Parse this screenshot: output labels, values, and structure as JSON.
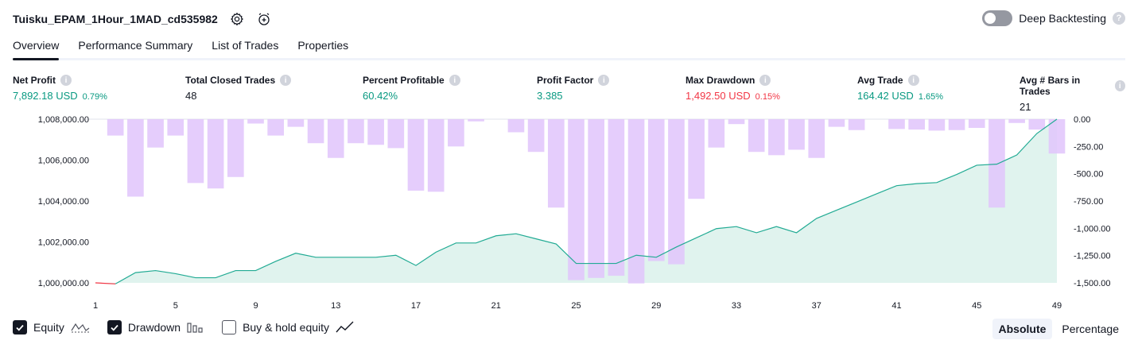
{
  "header": {
    "strategy_name": "Tuisku_EPAM_1Hour_1MAD_cd535982",
    "deep_backtesting_label": "Deep Backtesting"
  },
  "tabs": [
    {
      "label": "Overview",
      "active": true
    },
    {
      "label": "Performance Summary",
      "active": false
    },
    {
      "label": "List of Trades",
      "active": false
    },
    {
      "label": "Properties",
      "active": false
    }
  ],
  "stats": [
    {
      "label": "Net Profit",
      "value": "7,892.18 USD",
      "pct": "0.79%",
      "tone": "pos"
    },
    {
      "label": "Total Closed Trades",
      "value": "48",
      "pct": "",
      "tone": "neu"
    },
    {
      "label": "Percent Profitable",
      "value": "60.42%",
      "pct": "",
      "tone": "pos"
    },
    {
      "label": "Profit Factor",
      "value": "3.385",
      "pct": "",
      "tone": "pos"
    },
    {
      "label": "Max Drawdown",
      "value": "1,492.50 USD",
      "pct": "0.15%",
      "tone": "neg"
    },
    {
      "label": "Avg Trade",
      "value": "164.42 USD",
      "pct": "1.65%",
      "tone": "pos"
    },
    {
      "label": "Avg # Bars in Trades",
      "value": "21",
      "pct": "",
      "tone": "neu"
    }
  ],
  "colors": {
    "equity_line": "#22ab94",
    "equity_fill": "#e0f3ee",
    "equity_negative": "#f23645",
    "drawdown_bar": "#e0c4fb",
    "positive": "#089981",
    "negative": "#f23645"
  },
  "chart_data": {
    "type": "line",
    "x_ticks": [
      1,
      5,
      9,
      13,
      17,
      21,
      25,
      29,
      33,
      37,
      41,
      45,
      49
    ],
    "xlim": [
      1,
      49
    ],
    "left_axis": {
      "ticks": [
        "1,008,000.00",
        "1,006,000.00",
        "1,004,000.00",
        "1,002,000.00",
        "1,000,000.00"
      ],
      "tick_values": [
        1008000,
        1006000,
        1004000,
        1002000,
        1000000
      ],
      "ylim": [
        1000000,
        1008000
      ]
    },
    "right_axis": {
      "ticks": [
        "0.00",
        "-250.00",
        "-500.00",
        "-750.00",
        "-1,000.00",
        "-1,250.00",
        "-1,500.00"
      ],
      "tick_values": [
        0,
        -250,
        -500,
        -750,
        -1000,
        -1250,
        -1500
      ],
      "ylim": [
        -1500,
        0
      ]
    },
    "series": [
      {
        "name": "Equity",
        "axis": "left",
        "x": [
          1,
          2,
          3,
          4,
          5,
          6,
          7,
          8,
          9,
          10,
          11,
          12,
          13,
          14,
          15,
          16,
          17,
          18,
          19,
          20,
          21,
          22,
          23,
          24,
          25,
          26,
          27,
          28,
          29,
          30,
          31,
          32,
          33,
          34,
          35,
          36,
          37,
          38,
          39,
          40,
          41,
          42,
          43,
          44,
          45,
          46,
          47,
          48,
          49
        ],
        "values": [
          1000000,
          999950,
          1000500,
          1000600,
          1000450,
          1000250,
          1000250,
          1000600,
          1000600,
          1001050,
          1001450,
          1001250,
          1001250,
          1001250,
          1001250,
          1001350,
          1000850,
          1001500,
          1001950,
          1001950,
          1002300,
          1002400,
          1002150,
          1001900,
          1000950,
          1000950,
          1000950,
          1001350,
          1001250,
          1001750,
          1002200,
          1002650,
          1002750,
          1002450,
          1002750,
          1002450,
          1003150,
          1003550,
          1003950,
          1004350,
          1004750,
          1004850,
          1004900,
          1005300,
          1005750,
          1005800,
          1006250,
          1007300,
          1008000
        ]
      },
      {
        "name": "Drawdown",
        "axis": "right",
        "x": [
          1,
          2,
          3,
          4,
          5,
          6,
          7,
          8,
          9,
          10,
          11,
          12,
          13,
          14,
          15,
          16,
          17,
          18,
          19,
          20,
          21,
          22,
          23,
          24,
          25,
          26,
          27,
          28,
          29,
          30,
          31,
          32,
          33,
          34,
          35,
          36,
          37,
          38,
          39,
          40,
          41,
          42,
          43,
          44,
          45,
          46,
          47,
          48,
          49
        ],
        "values": [
          0,
          -150,
          -710,
          -260,
          -150,
          -585,
          -635,
          -530,
          -40,
          -150,
          -70,
          -220,
          -355,
          -220,
          -235,
          -265,
          -655,
          -665,
          -250,
          -20,
          0,
          -120,
          -300,
          -810,
          -1475,
          -1455,
          -1435,
          -1505,
          -1300,
          -1330,
          -730,
          -260,
          -45,
          -300,
          -330,
          -280,
          -355,
          -70,
          -100,
          0,
          -90,
          -95,
          -105,
          -100,
          -80,
          -810,
          -35,
          -95,
          -315
        ]
      }
    ]
  },
  "legend": [
    {
      "label": "Equity",
      "checked": true
    },
    {
      "label": "Drawdown",
      "checked": true
    },
    {
      "label": "Buy & hold equity",
      "checked": false
    }
  ],
  "mode_buttons": {
    "absolute": "Absolute",
    "percentage": "Percentage"
  }
}
